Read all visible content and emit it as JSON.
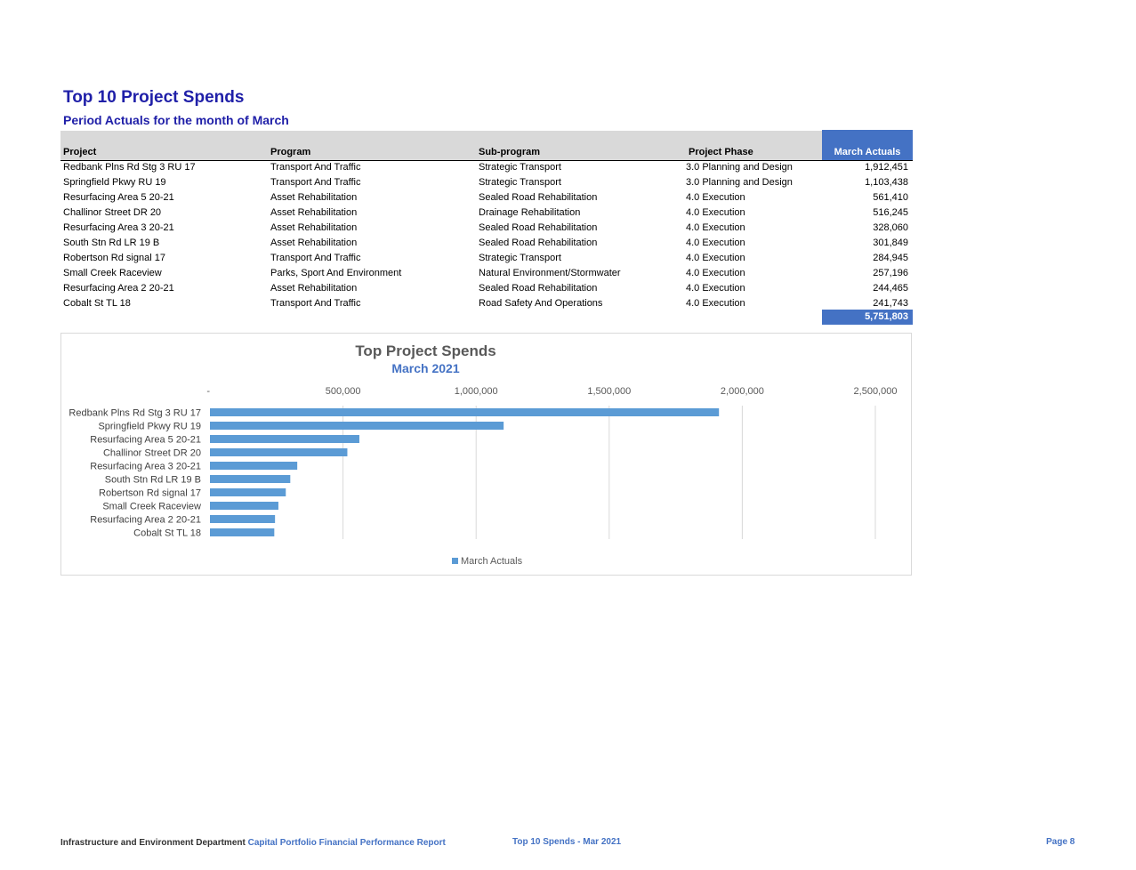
{
  "report": {
    "title": "Top 10 Project Spends",
    "subtitle": "Period Actuals for the month of March"
  },
  "table": {
    "headers": {
      "project": "Project",
      "program": "Program",
      "subprogram": "Sub-program",
      "phase": "Project Phase",
      "actuals": "March Actuals"
    },
    "rows": [
      {
        "project": "Redbank Plns Rd Stg 3 RU 17",
        "program": "Transport And Traffic",
        "subprogram": "Strategic Transport",
        "phase": "3.0 Planning and Design",
        "actuals": "1,912,451"
      },
      {
        "project": "Springfield Pkwy RU 19",
        "program": "Transport And Traffic",
        "subprogram": "Strategic Transport",
        "phase": "3.0 Planning and Design",
        "actuals": "1,103,438"
      },
      {
        "project": "Resurfacing Area 5 20-21",
        "program": "Asset Rehabilitation",
        "subprogram": "Sealed Road Rehabilitation",
        "phase": "4.0 Execution",
        "actuals": "561,410"
      },
      {
        "project": "Challinor Street DR 20",
        "program": "Asset Rehabilitation",
        "subprogram": "Drainage Rehabilitation",
        "phase": "4.0 Execution",
        "actuals": "516,245"
      },
      {
        "project": "Resurfacing Area 3 20-21",
        "program": "Asset Rehabilitation",
        "subprogram": "Sealed Road Rehabilitation",
        "phase": "4.0 Execution",
        "actuals": "328,060"
      },
      {
        "project": "South Stn Rd LR 19 B",
        "program": "Asset Rehabilitation",
        "subprogram": "Sealed Road Rehabilitation",
        "phase": "4.0 Execution",
        "actuals": "301,849"
      },
      {
        "project": "Robertson Rd signal 17",
        "program": "Transport And Traffic",
        "subprogram": "Strategic Transport",
        "phase": "4.0 Execution",
        "actuals": "284,945"
      },
      {
        "project": "Small Creek Raceview",
        "program": "Parks, Sport And Environment",
        "subprogram": "Natural Environment/Stormwater",
        "phase": "4.0 Execution",
        "actuals": "257,196"
      },
      {
        "project": "Resurfacing Area 2 20-21",
        "program": "Asset Rehabilitation",
        "subprogram": "Sealed Road Rehabilitation",
        "phase": "4.0 Execution",
        "actuals": "244,465"
      },
      {
        "project": "Cobalt St TL 18",
        "program": "Transport And Traffic",
        "subprogram": "Road Safety And Operations",
        "phase": "4.0 Execution",
        "actuals": "241,743"
      }
    ],
    "total": "5,751,803"
  },
  "chart_data": {
    "type": "bar",
    "orientation": "horizontal",
    "title": "Top Project Spends",
    "subtitle": "March 2021",
    "categories": [
      "Redbank Plns Rd Stg 3 RU 17",
      "Springfield Pkwy RU 19",
      "Resurfacing Area 5 20-21",
      "Challinor Street DR 20",
      "Resurfacing Area 3 20-21",
      "South Stn Rd LR 19 B",
      "Robertson Rd signal 17",
      "Small Creek Raceview",
      "Resurfacing Area 2 20-21",
      "Cobalt St TL 18"
    ],
    "series": [
      {
        "name": "March Actuals",
        "values": [
          1912451,
          1103438,
          561410,
          516245,
          328060,
          301849,
          284945,
          257196,
          244465,
          241743
        ],
        "color": "#5b9bd5"
      }
    ],
    "xlim": [
      0,
      2500000
    ],
    "tick_values": [
      0,
      500000,
      1000000,
      1500000,
      2000000,
      2500000
    ],
    "tick_labels": [
      "-",
      "500,000",
      "1,000,000",
      "1,500,000",
      "2,000,000",
      "2,500,000"
    ],
    "xaxis_position": "top",
    "grid": true,
    "legend": "bottom"
  },
  "footer": {
    "department": "Infrastructure and Environment Department",
    "report_name": "Capital Portfolio Financial Performance Report",
    "section": "Top 10 Spends - Mar 2021",
    "page": "Page 8"
  }
}
